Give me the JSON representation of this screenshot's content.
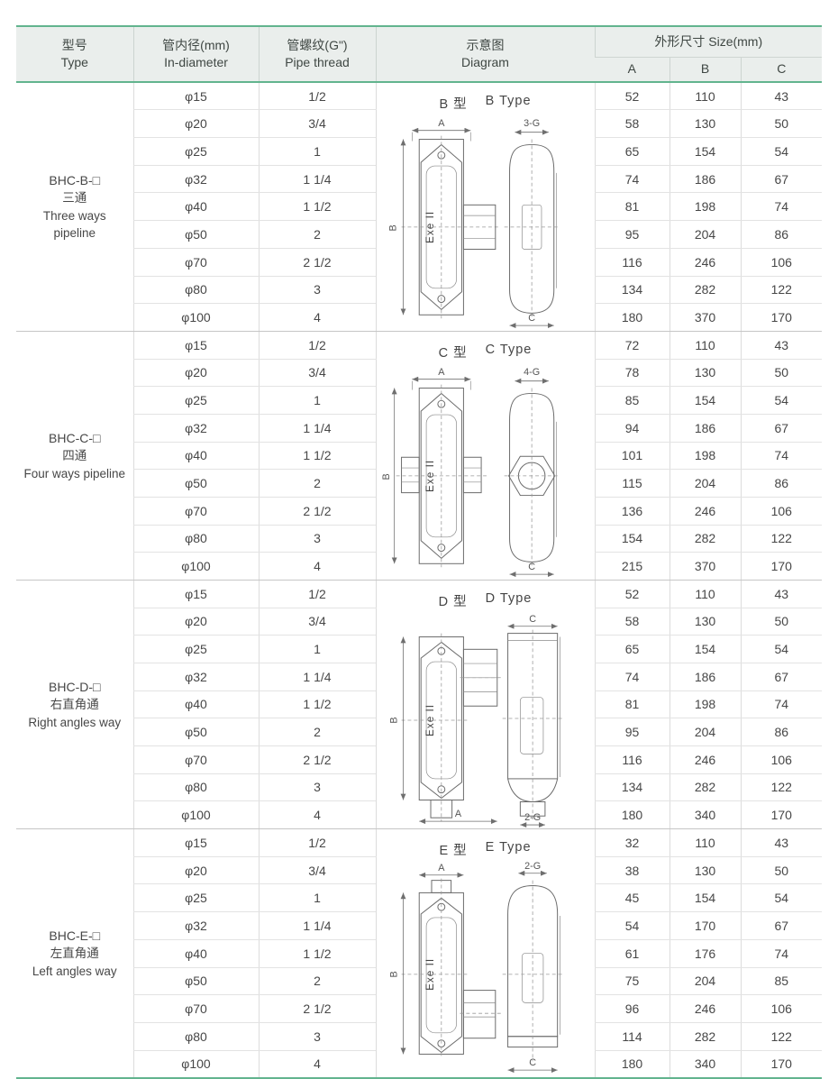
{
  "colors": {
    "accent_green": "#62b48e",
    "header_bg": "#eaeeec",
    "grid_line": "#dcdcdc",
    "text": "#474747"
  },
  "table": {
    "header": {
      "type_zh": "型号",
      "type_en": "Type",
      "diameter_zh": "管内径(mm)",
      "diameter_en": "In-diameter",
      "thread_zh": "管螺纹(G\")",
      "thread_en": "Pipe thread",
      "diagram_zh": "示意图",
      "diagram_en": "Diagram",
      "size_label": "外形尺寸  Size(mm)",
      "col_a": "A",
      "col_b": "B",
      "col_c": "C"
    },
    "groups": [
      {
        "model": "BHC-B-□",
        "name_zh": "三通",
        "name_en": "Three ways pipeline",
        "diagram": {
          "type": "B",
          "title_zh": "B 型",
          "title_en": "B Type",
          "front_width": "A",
          "front_height": "B",
          "side_top": "3-G",
          "side_bottom": "C",
          "body_label": "Exe II"
        },
        "rows": [
          {
            "d": "φ15",
            "thread": "1/2",
            "a": 52,
            "b": 110,
            "c": 43
          },
          {
            "d": "φ20",
            "thread": "3/4",
            "a": 58,
            "b": 130,
            "c": 50
          },
          {
            "d": "φ25",
            "thread": "1",
            "a": 65,
            "b": 154,
            "c": 54
          },
          {
            "d": "φ32",
            "thread": "1 1/4",
            "a": 74,
            "b": 186,
            "c": 67
          },
          {
            "d": "φ40",
            "thread": "1 1/2",
            "a": 81,
            "b": 198,
            "c": 74
          },
          {
            "d": "φ50",
            "thread": "2",
            "a": 95,
            "b": 204,
            "c": 86
          },
          {
            "d": "φ70",
            "thread": "2 1/2",
            "a": 116,
            "b": 246,
            "c": 106
          },
          {
            "d": "φ80",
            "thread": "3",
            "a": 134,
            "b": 282,
            "c": 122
          },
          {
            "d": "φ100",
            "thread": "4",
            "a": 180,
            "b": 370,
            "c": 170
          }
        ]
      },
      {
        "model": "BHC-C-□",
        "name_zh": "四通",
        "name_en": "Four ways pipeline",
        "diagram": {
          "type": "C",
          "title_zh": "C 型",
          "title_en": "C Type",
          "front_width": "A",
          "front_height": "B",
          "side_top": "4-G",
          "side_bottom": "C",
          "body_label": "Exe II"
        },
        "rows": [
          {
            "d": "φ15",
            "thread": "1/2",
            "a": 72,
            "b": 110,
            "c": 43
          },
          {
            "d": "φ20",
            "thread": "3/4",
            "a": 78,
            "b": 130,
            "c": 50
          },
          {
            "d": "φ25",
            "thread": "1",
            "a": 85,
            "b": 154,
            "c": 54
          },
          {
            "d": "φ32",
            "thread": "1 1/4",
            "a": 94,
            "b": 186,
            "c": 67
          },
          {
            "d": "φ40",
            "thread": "1 1/2",
            "a": 101,
            "b": 198,
            "c": 74
          },
          {
            "d": "φ50",
            "thread": "2",
            "a": 115,
            "b": 204,
            "c": 86
          },
          {
            "d": "φ70",
            "thread": "2 1/2",
            "a": 136,
            "b": 246,
            "c": 106
          },
          {
            "d": "φ80",
            "thread": "3",
            "a": 154,
            "b": 282,
            "c": 122
          },
          {
            "d": "φ100",
            "thread": "4",
            "a": 215,
            "b": 370,
            "c": 170
          }
        ]
      },
      {
        "model": "BHC-D-□",
        "name_zh": "右直角通",
        "name_en": "Right angles way",
        "diagram": {
          "type": "D",
          "title_zh": "D 型",
          "title_en": "D Type",
          "front_width": "A",
          "front_height": "B",
          "side_top": "C",
          "side_bottom": "2-G",
          "body_label": "Exe II"
        },
        "rows": [
          {
            "d": "φ15",
            "thread": "1/2",
            "a": 52,
            "b": 110,
            "c": 43
          },
          {
            "d": "φ20",
            "thread": "3/4",
            "a": 58,
            "b": 130,
            "c": 50
          },
          {
            "d": "φ25",
            "thread": "1",
            "a": 65,
            "b": 154,
            "c": 54
          },
          {
            "d": "φ32",
            "thread": "1 1/4",
            "a": 74,
            "b": 186,
            "c": 67
          },
          {
            "d": "φ40",
            "thread": "1 1/2",
            "a": 81,
            "b": 198,
            "c": 74
          },
          {
            "d": "φ50",
            "thread": "2",
            "a": 95,
            "b": 204,
            "c": 86
          },
          {
            "d": "φ70",
            "thread": "2 1/2",
            "a": 116,
            "b": 246,
            "c": 106
          },
          {
            "d": "φ80",
            "thread": "3",
            "a": 134,
            "b": 282,
            "c": 122
          },
          {
            "d": "φ100",
            "thread": "4",
            "a": 180,
            "b": 340,
            "c": 170
          }
        ]
      },
      {
        "model": "BHC-E-□",
        "name_zh": "左直角通",
        "name_en": "Left angles way",
        "diagram": {
          "type": "E",
          "title_zh": "E 型",
          "title_en": "E Type",
          "front_width": "A",
          "front_height": "B",
          "side_top": "2-G",
          "side_bottom": "C",
          "body_label": "Exe II"
        },
        "rows": [
          {
            "d": "φ15",
            "thread": "1/2",
            "a": 32,
            "b": 110,
            "c": 43
          },
          {
            "d": "φ20",
            "thread": "3/4",
            "a": 38,
            "b": 130,
            "c": 50
          },
          {
            "d": "φ25",
            "thread": "1",
            "a": 45,
            "b": 154,
            "c": 54
          },
          {
            "d": "φ32",
            "thread": "1 1/4",
            "a": 54,
            "b": 170,
            "c": 67
          },
          {
            "d": "φ40",
            "thread": "1 1/2",
            "a": 61,
            "b": 176,
            "c": 74
          },
          {
            "d": "φ50",
            "thread": "2",
            "a": 75,
            "b": 204,
            "c": 85
          },
          {
            "d": "φ70",
            "thread": "2 1/2",
            "a": 96,
            "b": 246,
            "c": 106
          },
          {
            "d": "φ80",
            "thread": "3",
            "a": 114,
            "b": 282,
            "c": 122
          },
          {
            "d": "φ100",
            "thread": "4",
            "a": 180,
            "b": 340,
            "c": 170
          }
        ]
      }
    ]
  }
}
